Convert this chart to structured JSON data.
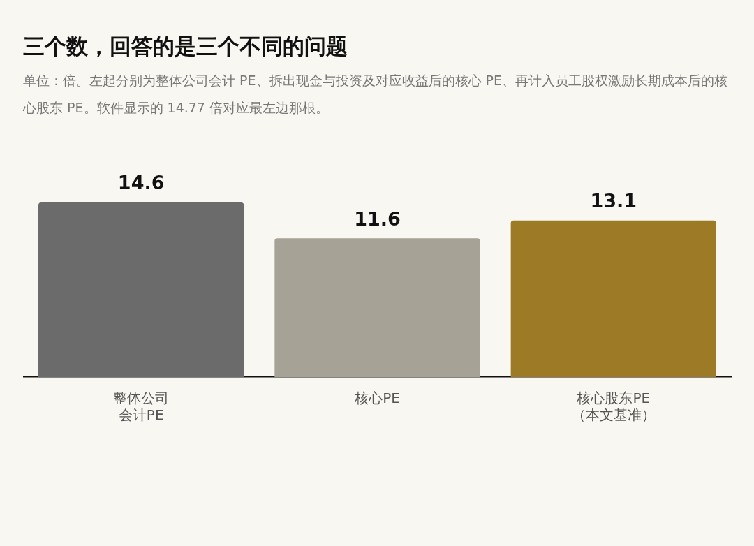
{
  "chart_data": {
    "type": "bar",
    "title": "三个数，回答的是三个不同的问题",
    "subtitle": "单位：倍。左起分别为整体公司会计 PE、拆出现金与投资及对应收益后的核心 PE、再计入员工股权激励长期成本后的核心股东 PE。软件显示的 14.77 倍对应最左边那根。",
    "categories": [
      "整体公司会计PE",
      "核心PE",
      "核心股东PE（本文基准）"
    ],
    "values": [
      14.6,
      11.6,
      13.1
    ],
    "colors": [
      "#6b6b6b",
      "#a6a296",
      "#9c7a26"
    ],
    "data_labels": true,
    "grid": false,
    "legend": false
  }
}
